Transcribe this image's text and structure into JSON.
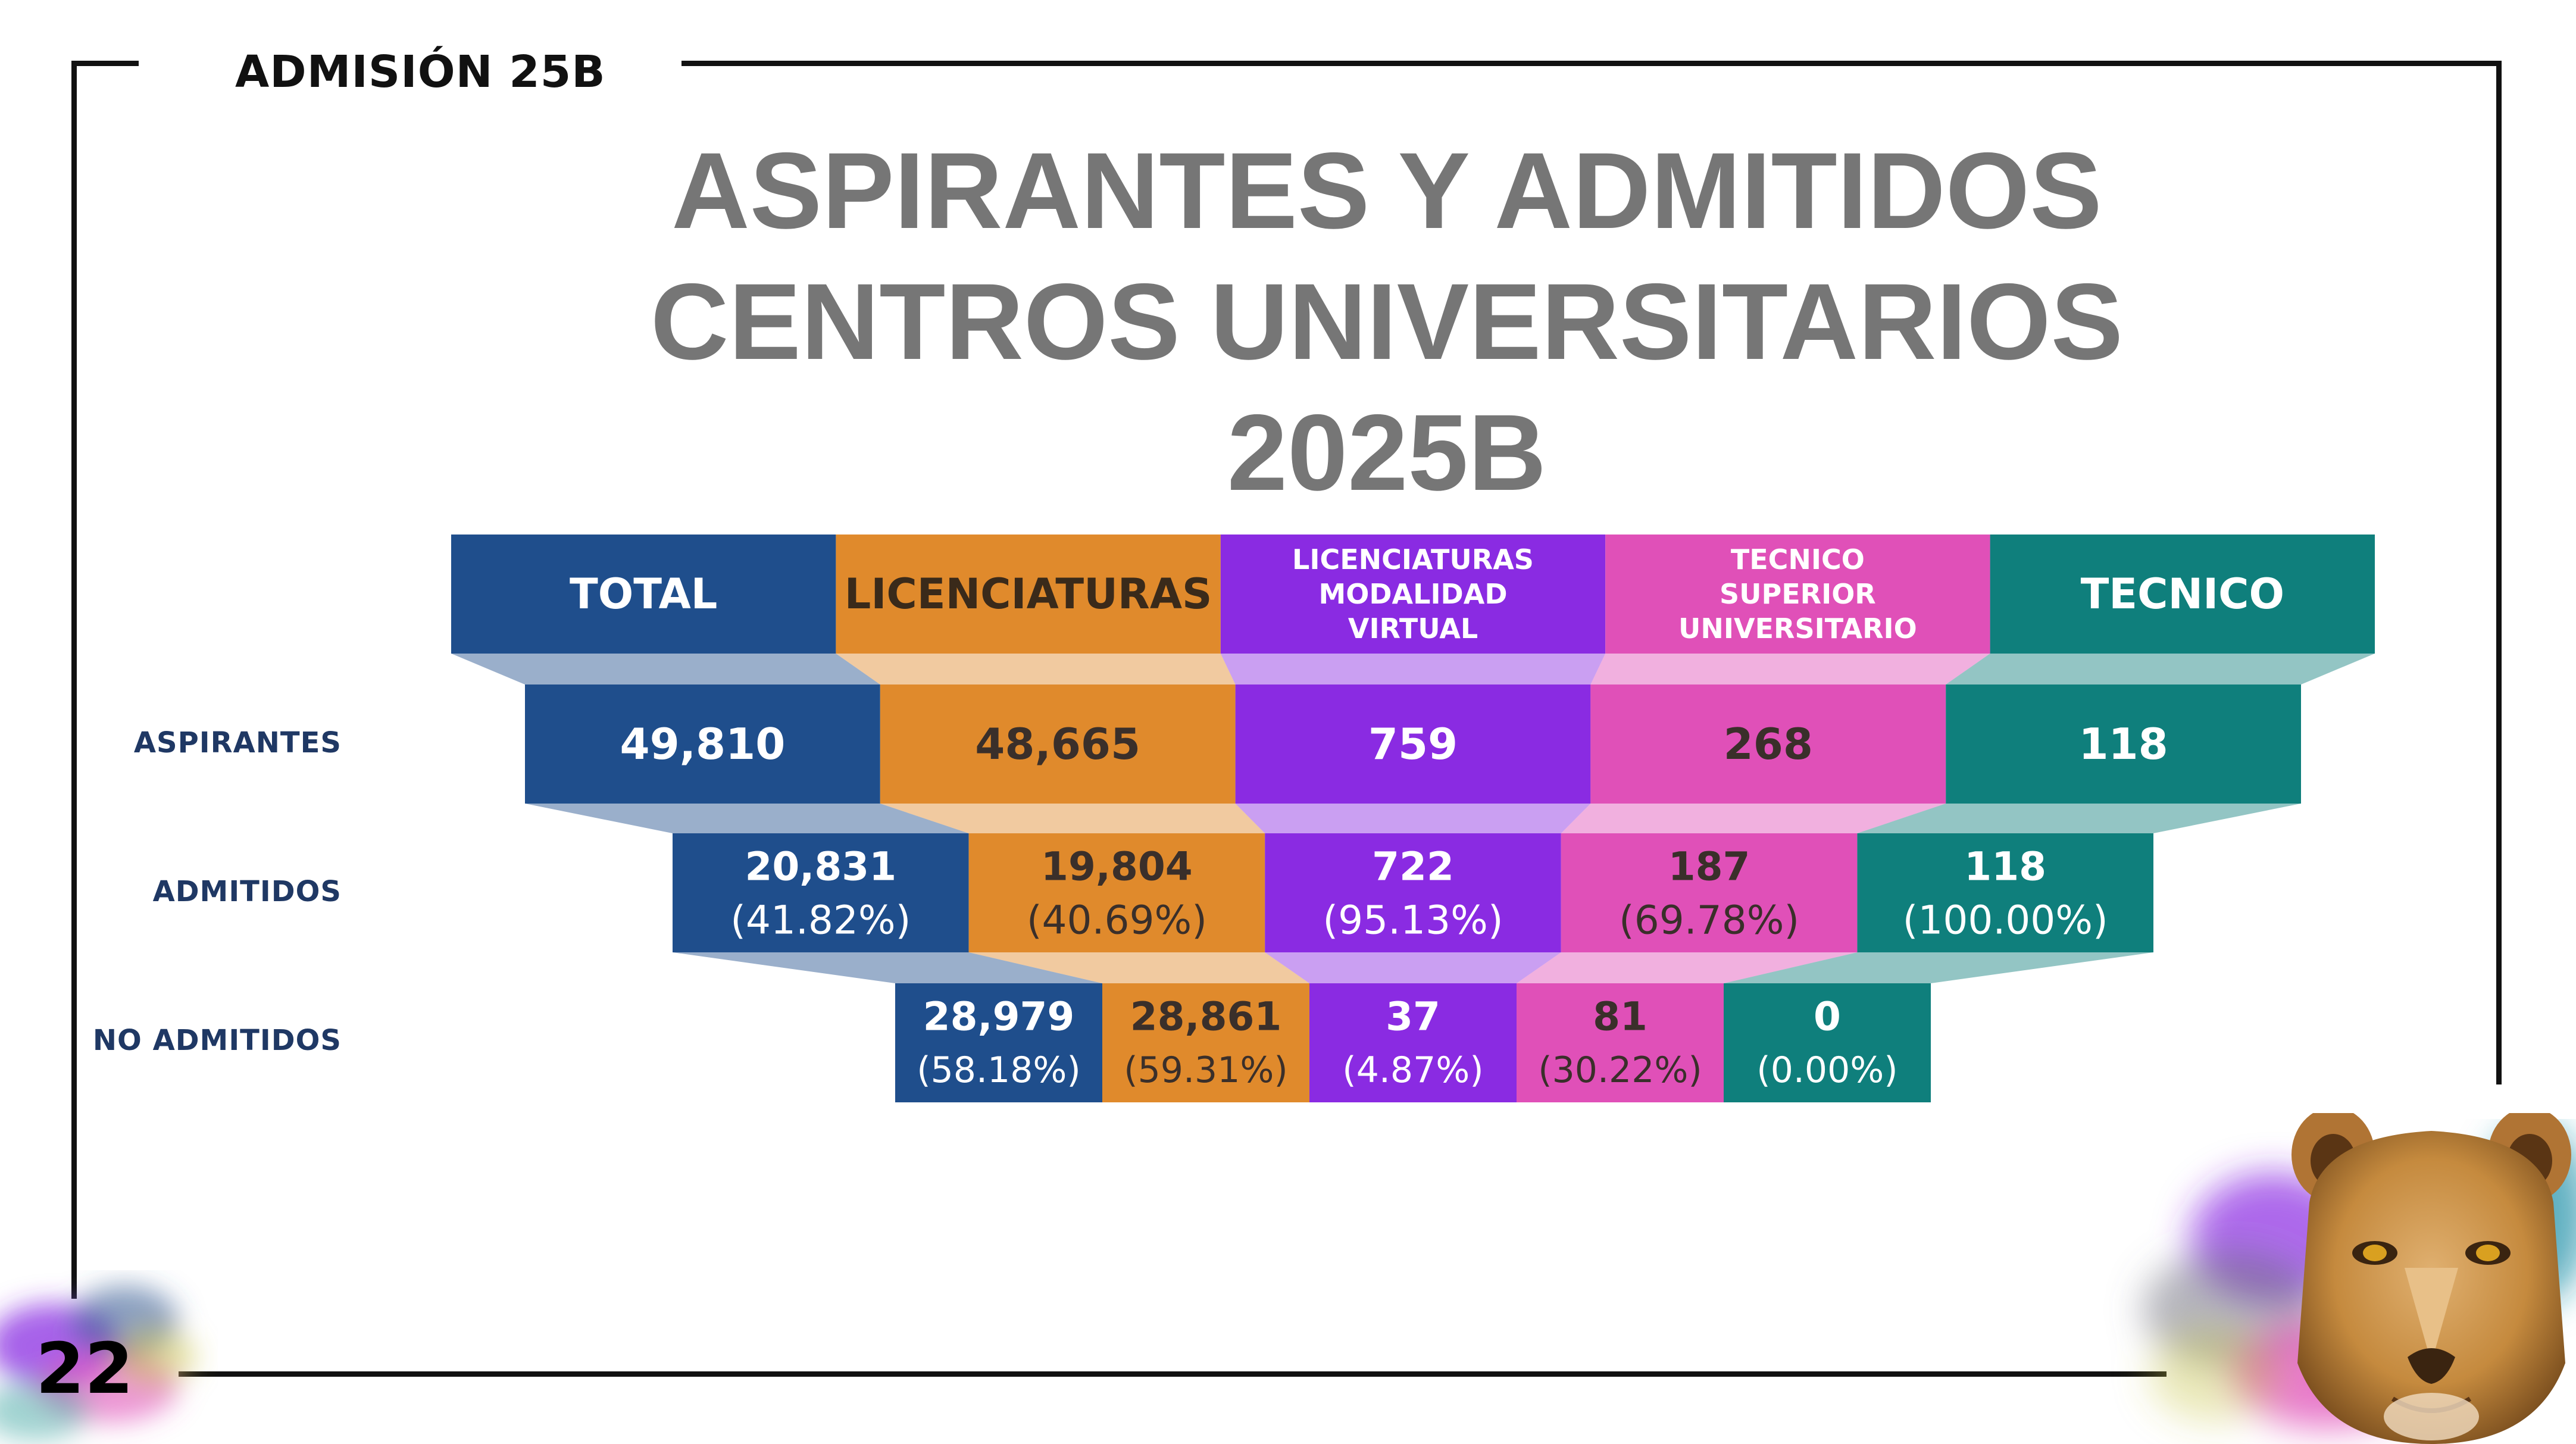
{
  "header": {
    "label": "ADMISIÓN 25B"
  },
  "title": {
    "lines": [
      "ASPIRANTES Y ADMITIDOS",
      "CENTROS UNIVERSITARIOS",
      "2025B"
    ]
  },
  "page_number": "22",
  "row_labels": {
    "aspirantes": "ASPIRANTES",
    "admitidos": "ADMITIDOS",
    "no_admitidos": "NO ADMITIDOS"
  },
  "colors": {
    "total": "#1f4e8c",
    "licenciaturas": "#e08a2c",
    "virtual": "#8a2be2",
    "tsu": "#e050b8",
    "tecnico": "#0f7f7c",
    "title": "#767676",
    "row_label": "#1f3864"
  },
  "chart_data": {
    "type": "table",
    "categories": [
      "TOTAL",
      "LICENCIATURAS",
      "LICENCIATURAS MODALIDAD VIRTUAL",
      "TECNICO SUPERIOR UNIVERSITARIO",
      "TECNICO"
    ],
    "category_lines": [
      [
        "TOTAL"
      ],
      [
        "LICENCIATURAS"
      ],
      [
        "LICENCIATURAS",
        "MODALIDAD",
        "VIRTUAL"
      ],
      [
        "TECNICO",
        "SUPERIOR",
        "UNIVERSITARIO"
      ],
      [
        "TECNICO"
      ]
    ],
    "rows": [
      {
        "name": "ASPIRANTES",
        "values": [
          "49,810",
          "48,665",
          "759",
          "268",
          "118"
        ],
        "percents": [
          "",
          "",
          "",
          "",
          ""
        ]
      },
      {
        "name": "ADMITIDOS",
        "values": [
          "20,831",
          "19,804",
          "722",
          "187",
          "118"
        ],
        "percents": [
          "(41.82%)",
          "(40.69%)",
          "(95.13%)",
          "(69.78%)",
          "(100.00%)"
        ]
      },
      {
        "name": "NO ADMITIDOS",
        "values": [
          "28,979",
          "28,861",
          "37",
          "81",
          "0"
        ],
        "percents": [
          "(58.18%)",
          "(59.31%)",
          "(4.87%)",
          "(30.22%)",
          "(0.00%)"
        ]
      }
    ]
  }
}
